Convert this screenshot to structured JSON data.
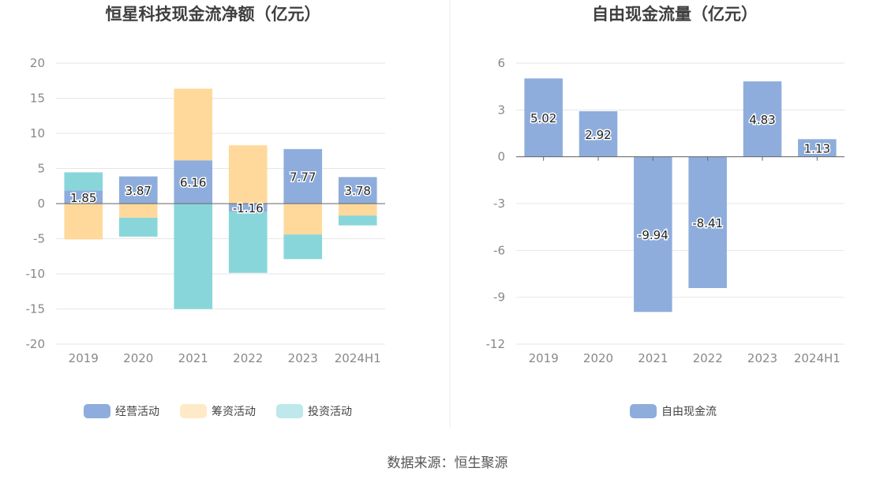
{
  "source_text": "数据来源：恒生聚源",
  "colors": {
    "operating": "#8eaddc",
    "financing": "#ffd99b",
    "investing": "#88d6da",
    "free_cash": "#8eaddc",
    "grid": "#e6e6e6",
    "axis": "#666666"
  },
  "chart_data": [
    {
      "type": "bar",
      "stacked": true,
      "title": "恒星科技现金流净额（亿元）",
      "categories": [
        "2019",
        "2020",
        "2021",
        "2022",
        "2023",
        "2024H1"
      ],
      "ylim": [
        -20,
        20
      ],
      "yticks": [
        20,
        15,
        10,
        5,
        0,
        -5,
        -10,
        -15,
        -20
      ],
      "series": [
        {
          "name": "经营活动",
          "color_key": "operating",
          "values": [
            1.85,
            3.87,
            6.16,
            -1.16,
            7.77,
            3.78
          ]
        },
        {
          "name": "筹资活动",
          "color_key": "financing",
          "values": [
            -5.1,
            -2.0,
            10.2,
            8.3,
            -4.4,
            -1.7
          ]
        },
        {
          "name": "投资活动",
          "color_key": "investing",
          "values": [
            2.6,
            -2.7,
            -15.0,
            -8.7,
            -3.5,
            -1.4
          ]
        }
      ],
      "labels": [
        "1.85",
        "3.87",
        "6.16",
        "-1.16",
        "7.77",
        "3.78"
      ],
      "legend": [
        "经营活动",
        "筹资活动",
        "投资活动"
      ]
    },
    {
      "type": "bar",
      "title": "自由现金流量（亿元）",
      "categories": [
        "2019",
        "2020",
        "2021",
        "2022",
        "2023",
        "2024H1"
      ],
      "ylim": [
        -12,
        6
      ],
      "yticks": [
        6,
        3,
        0,
        -3,
        -6,
        -9,
        -12
      ],
      "series": [
        {
          "name": "自由现金流",
          "color_key": "free_cash",
          "values": [
            5.02,
            2.92,
            -9.94,
            -8.41,
            4.83,
            1.13
          ]
        }
      ],
      "labels": [
        "5.02",
        "2.92",
        "-9.94",
        "-8.41",
        "4.83",
        "1.13"
      ],
      "legend": [
        "自由现金流"
      ]
    }
  ]
}
